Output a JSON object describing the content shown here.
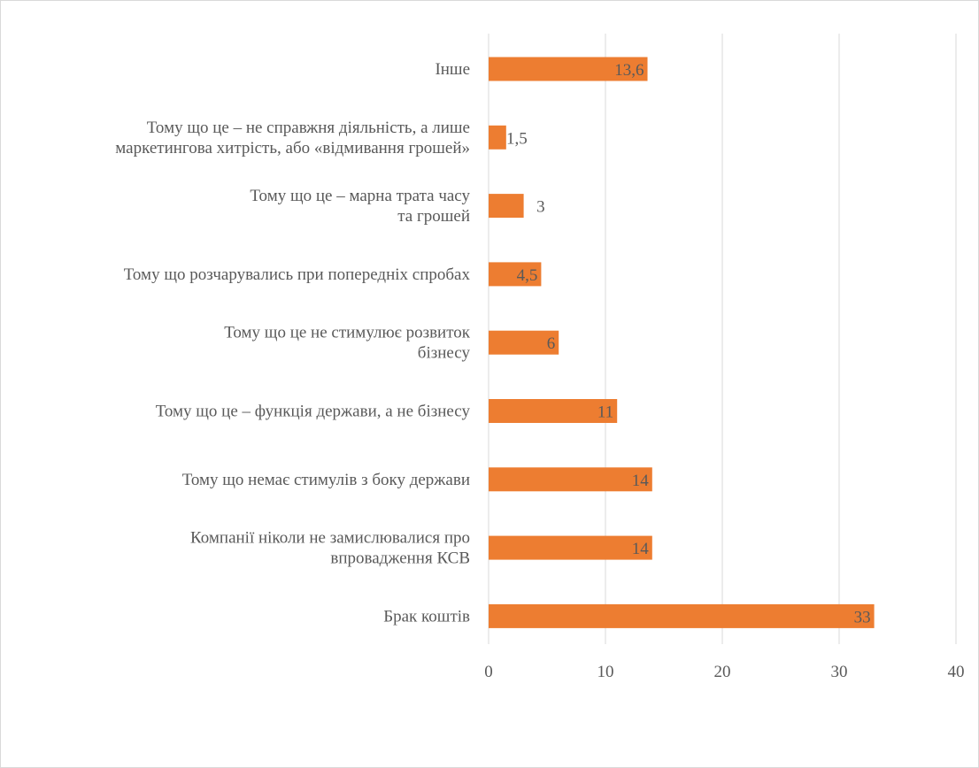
{
  "chart_data": {
    "type": "bar",
    "orientation": "horizontal",
    "categories": [
      "Інше",
      "Тому що це – не справжня діяльність, а лише маркетингова хитрість, або «відмивання грошей»",
      "Тому що це – марна трата часу та грошей",
      "Тому що розчарувались при попередніх спробах",
      "Тому що це не стимулює розвиток бізнесу",
      "Тому що це – функція держави, а не бізнесу",
      "Тому що немає стимулів з боку держави",
      "Компанії ніколи не замислювалися про впровадження КСВ",
      "Брак коштів"
    ],
    "category_lines": [
      [
        "Інше"
      ],
      [
        "Тому що це – не справжня діяльність, а лише",
        "маркетингова хитрість, або «відмивання грошей»"
      ],
      [
        "Тому що це – марна трата часу",
        "та грошей"
      ],
      [
        "Тому що розчарувались при попередніх спробах"
      ],
      [
        "Тому що це не стимулює розвиток",
        "бізнесу"
      ],
      [
        "Тому що це – функція держави, а не бізнесу"
      ],
      [
        "Тому що немає стимулів з боку держави"
      ],
      [
        "Компанії ніколи не замислювалися про",
        "впровадження КСВ"
      ],
      [
        "Брак коштів"
      ]
    ],
    "values": [
      13.6,
      1.5,
      3,
      4.5,
      6,
      11,
      14,
      14,
      33
    ],
    "data_labels": [
      "13,6",
      "1,5",
      "3",
      "4,5",
      "6",
      "11",
      "14",
      "14",
      "33"
    ],
    "xlim": [
      0,
      40
    ],
    "xticks": [
      0,
      10,
      20,
      30,
      40
    ],
    "xtick_labels": [
      "0",
      "10",
      "20",
      "30",
      "40"
    ],
    "grid": true,
    "legend": "none",
    "bar_color": "#ED7D31",
    "title": "",
    "xlabel": "",
    "ylabel": ""
  }
}
